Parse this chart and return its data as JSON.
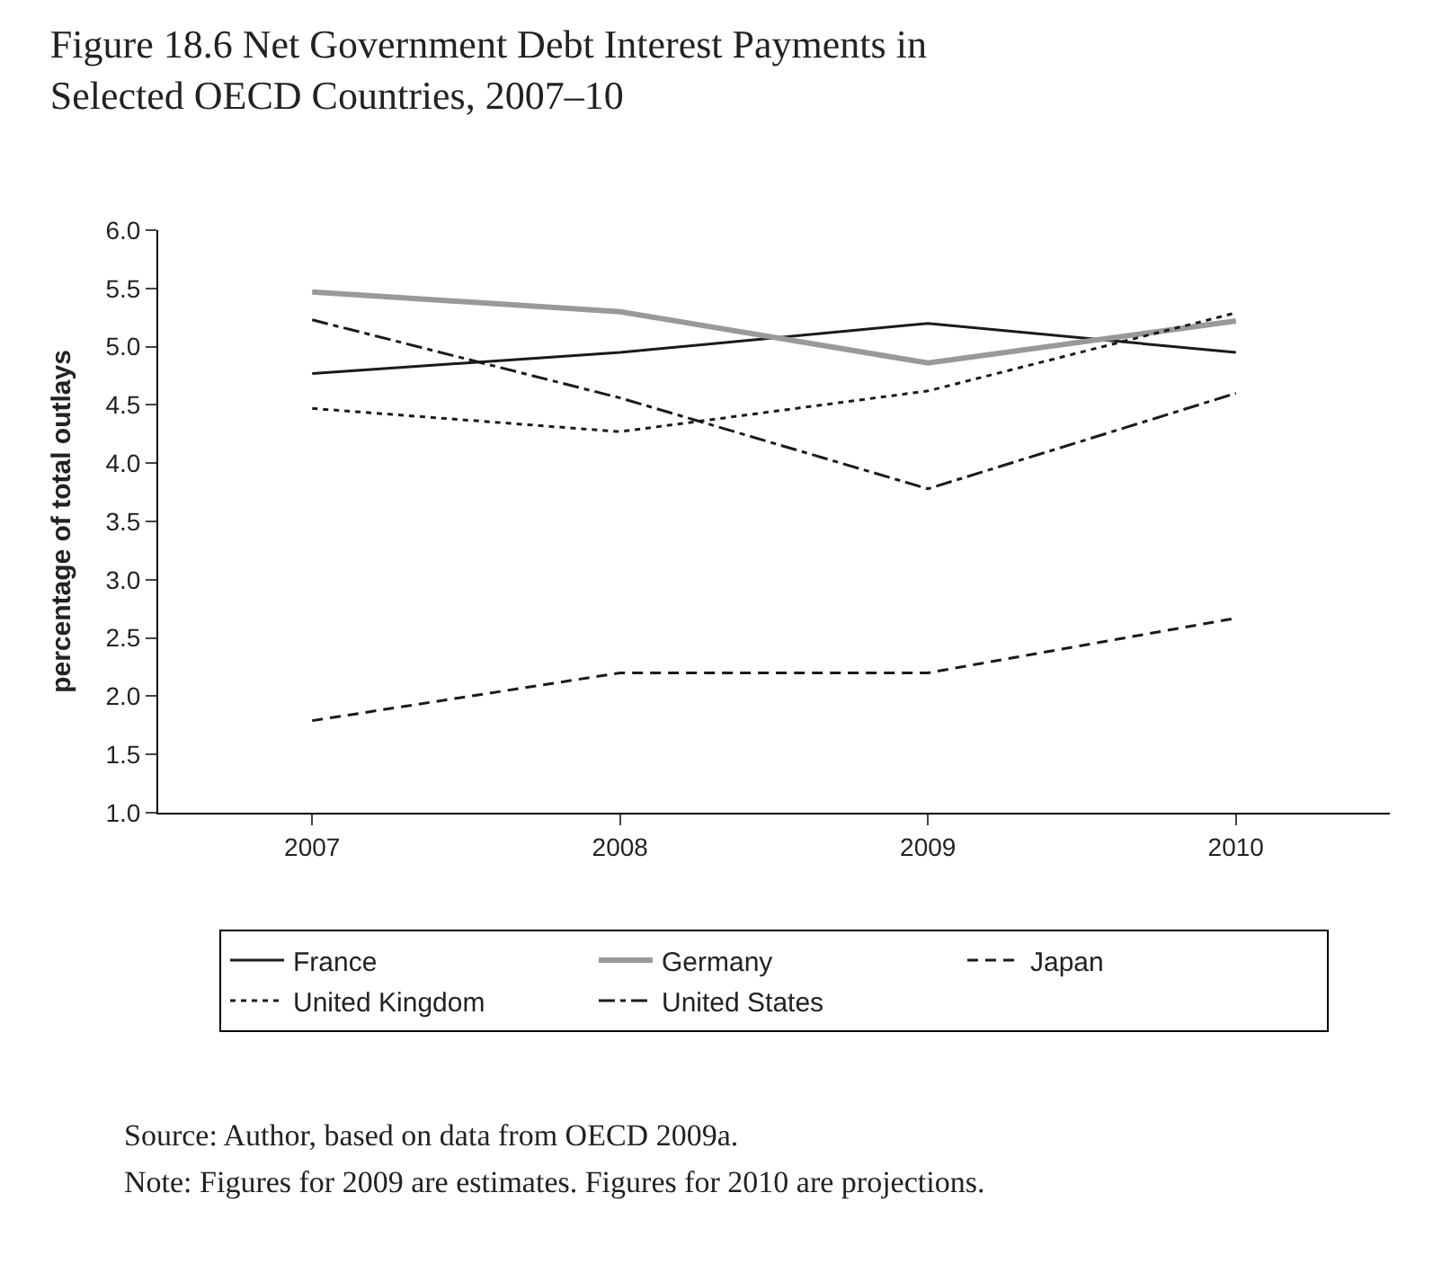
{
  "chart_data": {
    "type": "line",
    "title": "Figure 18.6 Net Government Debt Interest Payments in Selected OECD Countries, 2007–10",
    "ylabel": "percentage of total outlays",
    "categories": [
      "2007",
      "2008",
      "2009",
      "2010"
    ],
    "series": [
      {
        "name": "France",
        "color": "#1a1a1a",
        "line_style": "solid",
        "values": [
          4.77,
          4.95,
          5.2,
          4.95
        ]
      },
      {
        "name": "Germany",
        "color": "#999999",
        "line_style": "solid",
        "values": [
          5.47,
          5.3,
          4.86,
          5.22
        ]
      },
      {
        "name": "Japan",
        "color": "#1a1a1a",
        "line_style": "dashed",
        "values": [
          1.79,
          2.2,
          2.2,
          2.67
        ]
      },
      {
        "name": "United Kingdom",
        "color": "#1a1a1a",
        "line_style": "dotted",
        "values": [
          4.47,
          4.27,
          4.62,
          5.29
        ]
      },
      {
        "name": "United States",
        "color": "#1a1a1a",
        "line_style": "dashdot",
        "values": [
          5.23,
          4.56,
          3.78,
          4.6
        ]
      }
    ],
    "ylim": [
      1.0,
      6.0
    ],
    "yticks": [
      {
        "value": 1,
        "label": "1.0"
      },
      1.5,
      {
        "value": 2,
        "label": "2.0"
      },
      2.5,
      {
        "value": 3,
        "label": "3.0"
      },
      3.5,
      {
        "value": 4,
        "label": "4.0"
      },
      4.5,
      {
        "value": 5,
        "label": "5.0"
      },
      5.5,
      {
        "value": 6,
        "label": "6.0"
      }
    ],
    "grid": false,
    "marker": "none",
    "legend": "bottom",
    "annotations": [
      "Source: Author, based on data from OECD 2009a.",
      "Note: Figures for 2009 are estimates. Figures for 2010 are projections."
    ]
  }
}
